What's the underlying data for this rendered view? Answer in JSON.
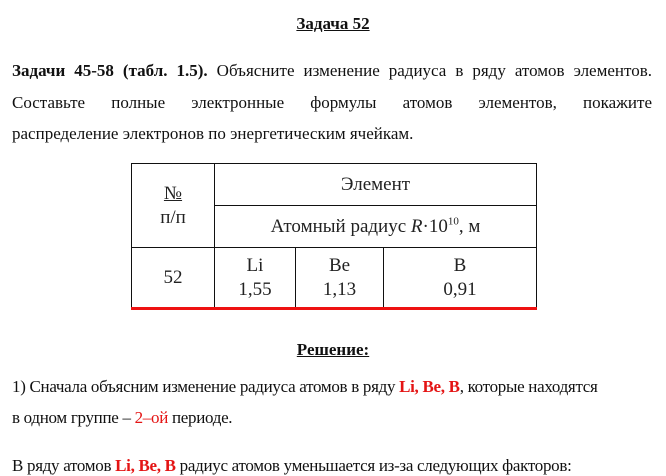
{
  "title": "Задача 52",
  "task": {
    "bold_prefix": "Задачи 45-58 (табл. 1.5).",
    "line1_rest": " Объясните изменение радиуса в ряду атомов элементов.",
    "line2": "Составьте полные электронные формулы атомов элементов, покажите",
    "line3": "распределение электронов по энергетическим ячейкам."
  },
  "table": {
    "col_num_header": [
      "№",
      "п/п"
    ],
    "element_header": "Элемент",
    "radius_header_prefix": "Атомный радиус ",
    "radius_header_var": "R",
    "radius_header_mult": "·10",
    "radius_header_exp": "10",
    "radius_header_unit": ", м",
    "row": {
      "num": "52",
      "cells": [
        {
          "element": "Li",
          "radius": "1,55"
        },
        {
          "element": "Be",
          "radius": "1,13"
        },
        {
          "element": "B",
          "radius": "0,91"
        }
      ]
    }
  },
  "solution": {
    "heading": "Решение:",
    "p1_a": "1) Сначала объясним изменение радиуса атомов в ряду ",
    "p1_elements": "Li, Be, B",
    "p1_b": ", которые находятся",
    "p1_c": "в одном группе – ",
    "p1_period": "2–ой",
    "p1_d": " периоде.",
    "p2_a": "В ряду атомов ",
    "p2_elements": "Li, Be, B",
    "p2_b": " радиус атомов уменьшается из-за следующих факторов:"
  },
  "colors": {
    "accent": "#e41414"
  }
}
